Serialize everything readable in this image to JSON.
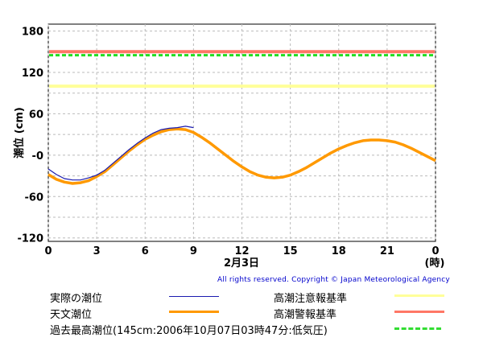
{
  "chart_data": {
    "type": "line",
    "xlabel": "2月3日",
    "xunit": "(時)",
    "ylabel": "潮位 (cm)",
    "x_ticks": [
      "0",
      "3",
      "6",
      "9",
      "12",
      "15",
      "18",
      "21",
      "0"
    ],
    "y_ticks": [
      "180",
      "120",
      "60",
      "-0",
      "-60",
      "-120"
    ],
    "xlim": [
      0,
      24
    ],
    "ylim": [
      -125,
      190
    ],
    "grid": true,
    "series": [
      {
        "name": "実際の潮位",
        "color": "#1a1ab0",
        "x": [
          0,
          0.5,
          1,
          1.5,
          2,
          2.5,
          3,
          3.5,
          4,
          4.5,
          5,
          5.5,
          6,
          6.5,
          7,
          7.5,
          8,
          8.5,
          9
        ],
        "y": [
          -20,
          -28,
          -34,
          -36,
          -36,
          -33,
          -29,
          -22,
          -12,
          -2,
          8,
          17,
          25,
          32,
          37,
          39,
          40,
          42,
          40
        ]
      },
      {
        "name": "天文潮位",
        "color": "#ff9900",
        "x": [
          0,
          0.5,
          1,
          1.5,
          2,
          2.5,
          3,
          3.5,
          4,
          4.5,
          5,
          5.5,
          6,
          6.5,
          7,
          7.5,
          8,
          8.5,
          9,
          9.5,
          10,
          10.5,
          11,
          11.5,
          12,
          12.5,
          13,
          13.5,
          14,
          14.5,
          15,
          15.5,
          16,
          16.5,
          17,
          17.5,
          18,
          18.5,
          19,
          19.5,
          20,
          20.5,
          21,
          21.5,
          22,
          22.5,
          23,
          23.5,
          24
        ],
        "y": [
          -28,
          -35,
          -39,
          -41,
          -40,
          -37,
          -31,
          -24,
          -14,
          -4,
          6,
          15,
          23,
          29,
          34,
          37,
          38,
          37,
          33,
          26,
          18,
          9,
          0,
          -9,
          -17,
          -24,
          -29,
          -32,
          -33,
          -32,
          -29,
          -24,
          -18,
          -11,
          -4,
          3,
          9,
          14,
          18,
          21,
          22,
          22,
          21,
          19,
          15,
          10,
          4,
          -2,
          -8
        ]
      }
    ],
    "reference_lines": [
      {
        "name": "高潮注意報基準",
        "value": 100,
        "color": "#ffff99"
      },
      {
        "name": "高潮警報基準",
        "value": 150,
        "color": "#ff7766"
      },
      {
        "name": "過去最高潮位(145cm:2006年10月07日03時47分:低気圧)",
        "value": 145,
        "color": "#33cc33",
        "dashed": true
      }
    ]
  },
  "copyright": "All rights reserved. Copyright © Japan Meteorological Agency",
  "legend": {
    "actual": "実際の潮位",
    "astro": "天文潮位",
    "record": "過去最高潮位(145cm:2006年10月07日03時47分:低気圧)",
    "advisory": "高潮注意報基準",
    "warning": "高潮警報基準"
  }
}
